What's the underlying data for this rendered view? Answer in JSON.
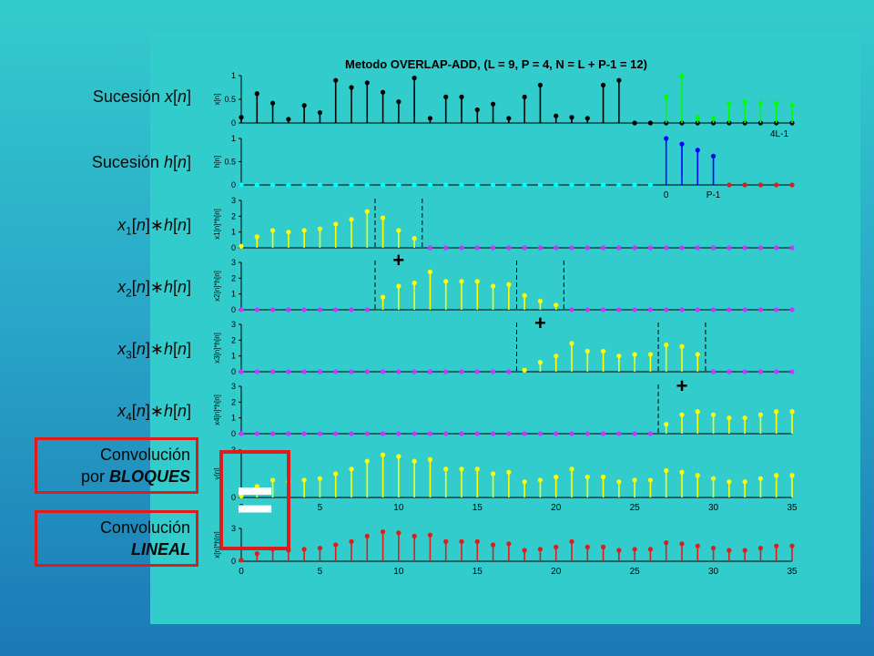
{
  "row_labels": [
    {
      "id": "x",
      "parts": [
        [
          "Sucesión ",
          ""
        ],
        [
          "x",
          "i"
        ],
        [
          "[",
          ""
        ],
        [
          "n",
          "i"
        ],
        [
          "]",
          ""
        ]
      ]
    },
    {
      "id": "h",
      "parts": [
        [
          "Sucesión ",
          ""
        ],
        [
          "h",
          "i"
        ],
        [
          "[",
          ""
        ],
        [
          "n",
          "i"
        ],
        [
          "]",
          ""
        ]
      ]
    },
    {
      "id": "x1",
      "parts": [
        [
          "x",
          "i"
        ],
        [
          "1",
          "sub"
        ],
        [
          "[",
          ""
        ],
        [
          "n",
          "i"
        ],
        [
          "]",
          ""
        ],
        [
          "∗",
          ""
        ],
        [
          "h",
          "i"
        ],
        [
          "[",
          ""
        ],
        [
          "n",
          "i"
        ],
        [
          "]",
          ""
        ]
      ]
    },
    {
      "id": "x2",
      "parts": [
        [
          "x",
          "i"
        ],
        [
          "2",
          "sub"
        ],
        [
          "[",
          ""
        ],
        [
          "n",
          "i"
        ],
        [
          "]",
          ""
        ],
        [
          "∗",
          ""
        ],
        [
          "h",
          "i"
        ],
        [
          "[",
          ""
        ],
        [
          "n",
          "i"
        ],
        [
          "]",
          ""
        ]
      ]
    },
    {
      "id": "x3",
      "parts": [
        [
          "x",
          "i"
        ],
        [
          "3",
          "sub"
        ],
        [
          "[",
          ""
        ],
        [
          "n",
          "i"
        ],
        [
          "]",
          ""
        ],
        [
          "∗",
          ""
        ],
        [
          "h",
          "i"
        ],
        [
          "[",
          ""
        ],
        [
          "n",
          "i"
        ],
        [
          "]",
          ""
        ]
      ]
    },
    {
      "id": "x4",
      "parts": [
        [
          "x",
          "i"
        ],
        [
          "4",
          "sub"
        ],
        [
          "[",
          ""
        ],
        [
          "n",
          "i"
        ],
        [
          "]",
          ""
        ],
        [
          "∗",
          ""
        ],
        [
          "h",
          "i"
        ],
        [
          "[",
          ""
        ],
        [
          "n",
          "i"
        ],
        [
          "]",
          ""
        ]
      ]
    }
  ],
  "boxes": {
    "block": {
      "line1": "Convolución",
      "line2_plain": "por ",
      "line2_emph": "BLOQUES"
    },
    "linear": {
      "line1": "Convolución",
      "line2_plain": "",
      "line2_emph": "LINEAL"
    }
  },
  "equals_sign": "=",
  "plus_sign": "+",
  "colors": {
    "black": "#000000",
    "green": "#00ff00",
    "blue": "#0000ff",
    "red": "#e01b1b",
    "yellow": "#ffff00",
    "magenta": "#cc33ff",
    "cyan": "#00ffff"
  },
  "chart_data": {
    "type": "stem",
    "title": "Metodo OVERLAP-ADD, (L = 9, P = 4, N = L + P-1 = 12)",
    "x_ticks": [
      0,
      5,
      10,
      15,
      20,
      25,
      30,
      35
    ],
    "xlim": [
      0,
      35
    ],
    "annotations": {
      "x_end": "4L-1",
      "h_zero": "0",
      "h_end": "P-1"
    },
    "panels": [
      {
        "ylabel": "x[n]",
        "ylim": [
          0,
          1
        ],
        "yticks": [
          0,
          0.5,
          1
        ],
        "series": [
          {
            "color": "black",
            "x": [
              0,
              1,
              2,
              3,
              4,
              5,
              6,
              7,
              8,
              9,
              10,
              11,
              12,
              13,
              14,
              15,
              16,
              17,
              18,
              19,
              20,
              21,
              22,
              23,
              24,
              25,
              26,
              27,
              28,
              29,
              30,
              31,
              32,
              33,
              34,
              35
            ],
            "y": [
              0.12,
              0.62,
              0.42,
              0.08,
              0.37,
              0.22,
              0.9,
              0.75,
              0.85,
              0.65,
              0.45,
              0.95,
              0.1,
              0.55,
              0.55,
              0.28,
              0.4,
              0.1,
              0.55,
              0.8,
              0.15,
              0.12,
              0.1,
              0.8,
              0.9,
              0,
              0,
              0,
              0,
              0,
              0,
              0,
              0,
              0,
              0,
              0
            ]
          },
          {
            "color": "green",
            "x": [
              27,
              28,
              29,
              30,
              31,
              32,
              33,
              34,
              35
            ],
            "y": [
              0.55,
              1.0,
              0.12,
              0.1,
              0.4,
              0.45,
              0.42,
              0.42,
              0.38
            ]
          }
        ]
      },
      {
        "ylabel": "h[n]",
        "ylim": [
          0,
          1
        ],
        "yticks": [
          0,
          0.5,
          1
        ],
        "series": [
          {
            "color": "cyan",
            "x": [
              0,
              1,
              2,
              3,
              4,
              5,
              6,
              7,
              8,
              9,
              10,
              11,
              12,
              13,
              14,
              15,
              16,
              17,
              18,
              19,
              20,
              21,
              22,
              23,
              24,
              25,
              26
            ],
            "y": [
              0,
              0,
              0,
              0,
              0,
              0,
              0,
              0,
              0,
              0,
              0,
              0,
              0,
              0,
              0,
              0,
              0,
              0,
              0,
              0,
              0,
              0,
              0,
              0,
              0,
              0,
              0
            ]
          },
          {
            "color": "blue",
            "x": [
              27,
              28,
              29,
              30
            ],
            "y": [
              1.0,
              0.88,
              0.75,
              0.62
            ]
          },
          {
            "color": "red",
            "x": [
              31,
              32,
              33,
              34,
              35
            ],
            "y": [
              0,
              0,
              0,
              0,
              0
            ]
          }
        ]
      },
      {
        "ylabel": "x1[n]*h[n]",
        "ylim": [
          0,
          3
        ],
        "yticks": [
          0,
          1,
          2,
          3
        ],
        "dashed": [
          8.5,
          11.5
        ],
        "series": [
          {
            "color": "yellow",
            "x": [
              0,
              1,
              2,
              3,
              4,
              5,
              6,
              7,
              8,
              9,
              10,
              11
            ],
            "y": [
              0.1,
              0.7,
              1.1,
              1.0,
              1.1,
              1.2,
              1.5,
              1.8,
              2.3,
              1.9,
              1.1,
              0.6
            ]
          },
          {
            "color": "magenta",
            "x": [
              12,
              13,
              14,
              15,
              16,
              17,
              18,
              19,
              20,
              21,
              22,
              23,
              24,
              25,
              26,
              27,
              28,
              29,
              30,
              31,
              32,
              33,
              34,
              35
            ],
            "y": [
              0,
              0,
              0,
              0,
              0,
              0,
              0,
              0,
              0,
              0,
              0,
              0,
              0,
              0,
              0,
              0,
              0,
              0,
              0,
              0,
              0,
              0,
              0,
              0
            ]
          }
        ]
      },
      {
        "ylabel": "x2[n]*h[n]",
        "ylim": [
          0,
          3
        ],
        "yticks": [
          0,
          1,
          2,
          3
        ],
        "dashed": [
          8.5,
          17.5,
          20.5
        ],
        "series": [
          {
            "color": "magenta",
            "x": [
              0,
              1,
              2,
              3,
              4,
              5,
              6,
              7,
              8
            ],
            "y": [
              0,
              0,
              0,
              0,
              0,
              0,
              0,
              0,
              0
            ]
          },
          {
            "color": "yellow",
            "x": [
              9,
              10,
              11,
              12,
              13,
              14,
              15,
              16,
              17,
              18,
              19,
              20
            ],
            "y": [
              0.8,
              1.5,
              1.7,
              2.4,
              1.8,
              1.8,
              1.8,
              1.5,
              1.6,
              0.9,
              0.55,
              0.3
            ]
          },
          {
            "color": "magenta",
            "x": [
              21,
              22,
              23,
              24,
              25,
              26,
              27,
              28,
              29,
              30,
              31,
              32,
              33,
              34,
              35
            ],
            "y": [
              0,
              0,
              0,
              0,
              0,
              0,
              0,
              0,
              0,
              0,
              0,
              0,
              0,
              0,
              0
            ]
          }
        ]
      },
      {
        "ylabel": "x3[n]*h[n]",
        "ylim": [
          0,
          3
        ],
        "yticks": [
          0,
          1,
          2,
          3
        ],
        "dashed": [
          17.5,
          26.5,
          29.5
        ],
        "series": [
          {
            "color": "magenta",
            "x": [
              0,
              1,
              2,
              3,
              4,
              5,
              6,
              7,
              8,
              9,
              10,
              11,
              12,
              13,
              14,
              15,
              16,
              17
            ],
            "y": [
              0,
              0,
              0,
              0,
              0,
              0,
              0,
              0,
              0,
              0,
              0,
              0,
              0,
              0,
              0,
              0,
              0,
              0
            ]
          },
          {
            "color": "yellow",
            "x": [
              18,
              19,
              20,
              21,
              22,
              23,
              24,
              25,
              26,
              27,
              28,
              29
            ],
            "y": [
              0.1,
              0.6,
              1.0,
              1.8,
              1.3,
              1.3,
              1.0,
              1.1,
              1.1,
              1.7,
              1.6,
              1.1
            ]
          },
          {
            "color": "magenta",
            "x": [
              30,
              31,
              32,
              33,
              34,
              35
            ],
            "y": [
              0,
              0,
              0,
              0,
              0,
              0
            ]
          }
        ]
      },
      {
        "ylabel": "x4[n]*h[n]",
        "ylim": [
          0,
          3
        ],
        "yticks": [
          0,
          1,
          2,
          3
        ],
        "dashed": [
          26.5
        ],
        "series": [
          {
            "color": "magenta",
            "x": [
              0,
              1,
              2,
              3,
              4,
              5,
              6,
              7,
              8,
              9,
              10,
              11,
              12,
              13,
              14,
              15,
              16,
              17,
              18,
              19,
              20,
              21,
              22,
              23,
              24,
              25,
              26
            ],
            "y": [
              0,
              0,
              0,
              0,
              0,
              0,
              0,
              0,
              0,
              0,
              0,
              0,
              0,
              0,
              0,
              0,
              0,
              0,
              0,
              0,
              0,
              0,
              0,
              0,
              0,
              0,
              0
            ]
          },
          {
            "color": "yellow",
            "x": [
              27,
              28,
              29,
              30,
              31,
              32,
              33,
              34,
              35
            ],
            "y": [
              0.6,
              1.2,
              1.4,
              1.2,
              1.0,
              1.0,
              1.2,
              1.4,
              1.4
            ]
          }
        ]
      },
      {
        "ylabel": "y[n]",
        "ylim": [
          0,
          3
        ],
        "yticks": [
          0,
          3
        ],
        "xticks_shown": true,
        "series": [
          {
            "color": "yellow",
            "x": [
              0,
              1,
              2,
              3,
              4,
              5,
              6,
              7,
              8,
              9,
              10,
              11,
              12,
              13,
              14,
              15,
              16,
              17,
              18,
              19,
              20,
              21,
              22,
              23,
              24,
              25,
              26,
              27,
              28,
              29,
              30,
              31,
              32,
              33,
              34,
              35
            ],
            "y": [
              0.1,
              0.7,
              1.1,
              1.0,
              1.1,
              1.2,
              1.5,
              1.8,
              2.3,
              2.7,
              2.6,
              2.3,
              2.4,
              1.8,
              1.8,
              1.8,
              1.5,
              1.6,
              1.0,
              1.1,
              1.3,
              1.8,
              1.3,
              1.3,
              1.0,
              1.1,
              1.1,
              1.7,
              1.6,
              1.4,
              1.2,
              1.0,
              1.0,
              1.2,
              1.4,
              1.4
            ]
          }
        ]
      },
      {
        "ylabel": "x[n]*h[n]",
        "ylim": [
          0,
          3
        ],
        "yticks": [
          0,
          3
        ],
        "xticks_shown": true,
        "series": [
          {
            "color": "red",
            "x": [
              0,
              1,
              2,
              3,
              4,
              5,
              6,
              7,
              8,
              9,
              10,
              11,
              12,
              13,
              14,
              15,
              16,
              17,
              18,
              19,
              20,
              21,
              22,
              23,
              24,
              25,
              26,
              27,
              28,
              29,
              30,
              31,
              32,
              33,
              34,
              35
            ],
            "y": [
              0.1,
              0.7,
              1.1,
              1.0,
              1.1,
              1.2,
              1.5,
              1.8,
              2.3,
              2.7,
              2.6,
              2.3,
              2.4,
              1.8,
              1.8,
              1.8,
              1.5,
              1.6,
              1.0,
              1.1,
              1.3,
              1.8,
              1.3,
              1.3,
              1.0,
              1.1,
              1.1,
              1.7,
              1.6,
              1.4,
              1.2,
              1.0,
              1.0,
              1.2,
              1.4,
              1.4
            ]
          }
        ]
      }
    ]
  }
}
